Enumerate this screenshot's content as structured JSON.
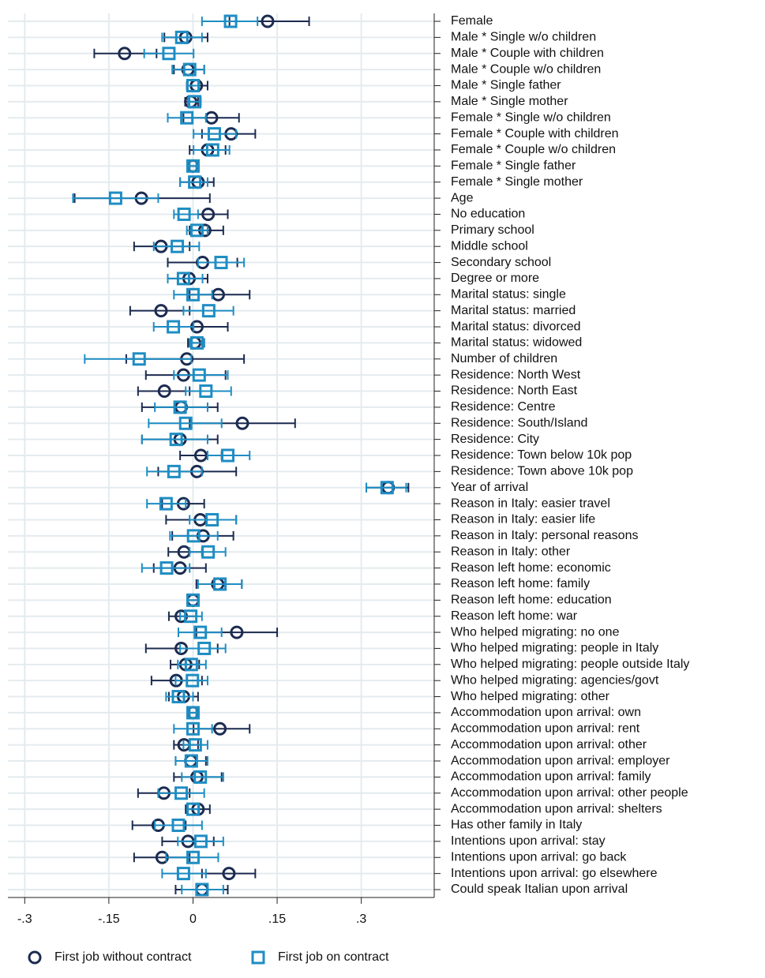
{
  "chart_data": {
    "type": "coefplot",
    "categories": [
      "Female",
      "Male * Single w/o children",
      "Male * Couple with children",
      "Male * Couple w/o children",
      "Male * Single father",
      "Male * Single mother",
      "Female * Single w/o children",
      "Female * Couple with children",
      "Female * Couple w/o children",
      "Female * Single father",
      "Female * Single mother",
      "Age",
      "No education",
      "Primary school",
      "Middle school",
      "Secondary school",
      "Degree or more",
      "Marital status: single",
      "Marital status: married",
      "Marital status: divorced",
      "Marital status: widowed",
      "Number of children",
      "Residence: North West",
      "Residence: North East",
      "Residence: Centre",
      "Residence: South/Island",
      "Residence: City",
      "Residence: Town below 10k pop",
      "Residence: Town above 10k pop",
      "Year of arrival",
      "Reason in Italy: easier travel",
      "Reason in Italy: easier life",
      "Reason in Italy: personal reasons",
      "Reason in Italy: other",
      "Reason left home: economic",
      "Reason left home: family",
      "Reason left home: education",
      "Reason left home: war",
      "Who helped migrating: no one",
      "Who helped migrating: people in Italy",
      "Who helped migrating: people outside Italy",
      "Who helped migrating: agencies/govt",
      "Who helped migrating: other",
      "Accommodation upon arrival: own",
      "Accommodation upon arrival: rent",
      "Accommodation upon arrival: other",
      "Accommodation upon arrival: employer",
      "Accommodation upon arrival: family",
      "Accommodation upon arrival: other people",
      "Accommodation upon arrival: shelters",
      "Has other family in Italy",
      "Intentions upon arrival: stay",
      "Intentions upon arrival: go back",
      "Intentions upon arrival: go elsewhere",
      "Could speak Italian upon arrival"
    ],
    "series": [
      {
        "name": "First job without contract",
        "marker": "circle",
        "color": "#1c2b50",
        "values": [
          0.133,
          -0.013,
          -0.122,
          -0.009,
          0.006,
          -0.004,
          0.033,
          0.068,
          0.026,
          0,
          0.009,
          -0.092,
          0.027,
          0.021,
          -0.057,
          0.017,
          -0.007,
          0.045,
          -0.057,
          0.007,
          0.003,
          -0.011,
          -0.017,
          -0.051,
          -0.021,
          0.088,
          -0.023,
          0.014,
          0.007,
          0.348,
          -0.017,
          0.013,
          0.018,
          -0.016,
          -0.023,
          0.044,
          0,
          -0.021,
          0.078,
          -0.021,
          -0.013,
          -0.03,
          -0.017,
          0,
          0.048,
          -0.016,
          -0.004,
          0.007,
          -0.052,
          0.009,
          -0.062,
          -0.009,
          -0.055,
          0.064,
          0.016
        ],
        "ci_low": [
          0.065,
          -0.051,
          -0.176,
          -0.034,
          -0.011,
          -0.014,
          -0.017,
          0.016,
          -0.006,
          -0.006,
          -0.023,
          -0.211,
          -0.006,
          -0.006,
          -0.105,
          -0.045,
          -0.045,
          -0.006,
          -0.112,
          -0.045,
          -0.009,
          -0.119,
          -0.084,
          -0.098,
          -0.091,
          -0.006,
          -0.091,
          -0.023,
          -0.062,
          0.309,
          -0.055,
          -0.048,
          -0.037,
          -0.044,
          -0.07,
          0.006,
          -0.009,
          -0.043,
          0.006,
          -0.084,
          -0.04,
          -0.074,
          -0.043,
          -0.006,
          0.001,
          -0.034,
          -0.031,
          -0.034,
          -0.098,
          -0.013,
          -0.108,
          -0.055,
          -0.105,
          0.016,
          -0.031
        ],
        "ci_high": [
          0.207,
          0.026,
          -0.065,
          0.02,
          0.026,
          0.009,
          0.082,
          0.111,
          0.058,
          0.006,
          0.037,
          0.03,
          0.062,
          0.054,
          -0.006,
          0.079,
          0.026,
          0.101,
          -0.006,
          0.062,
          0.02,
          0.091,
          0.058,
          -0.006,
          0.044,
          0.182,
          0.044,
          0.051,
          0.077,
          0.384,
          0.02,
          0.077,
          0.072,
          0.016,
          0.023,
          0.087,
          0.009,
          0.006,
          0.15,
          0.044,
          0.011,
          0.016,
          0.009,
          0.006,
          0.101,
          0.009,
          0.023,
          0.051,
          -0.006,
          0.03,
          -0.013,
          0.037,
          -0.006,
          0.111,
          0.062
        ]
      },
      {
        "name": "First job on contract",
        "marker": "square",
        "color": "#1e8dc3",
        "values": [
          0.067,
          -0.02,
          -0.043,
          -0.006,
          0,
          0.003,
          -0.011,
          0.038,
          0.035,
          0,
          0.003,
          -0.138,
          -0.016,
          0.007,
          -0.028,
          0.05,
          -0.017,
          0,
          0.028,
          -0.035,
          0.007,
          -0.096,
          0.011,
          0.023,
          -0.023,
          -0.013,
          -0.03,
          0.062,
          -0.034,
          0.346,
          -0.048,
          0.034,
          0.001,
          0.027,
          -0.047,
          0.048,
          0,
          -0.004,
          0.013,
          0.02,
          -0.003,
          -0.001,
          -0.026,
          0,
          0,
          0.004,
          -0.003,
          0.013,
          -0.021,
          0,
          -0.026,
          0.014,
          0,
          -0.017,
          0.016
        ],
        "ci_low": [
          0.016,
          -0.055,
          -0.087,
          -0.037,
          -0.011,
          -0.009,
          -0.045,
          0.001,
          0.001,
          -0.006,
          -0.023,
          -0.214,
          -0.034,
          -0.011,
          -0.07,
          0.009,
          -0.045,
          -0.034,
          -0.017,
          -0.07,
          -0.006,
          -0.193,
          -0.034,
          -0.013,
          -0.068,
          -0.079,
          -0.091,
          0.026,
          -0.082,
          0.309,
          -0.082,
          -0.006,
          -0.041,
          -0.006,
          -0.091,
          0.009,
          -0.009,
          -0.023,
          -0.026,
          -0.023,
          -0.027,
          -0.031,
          -0.048,
          -0.006,
          -0.034,
          -0.017,
          -0.031,
          -0.02,
          -0.062,
          -0.009,
          -0.068,
          -0.027,
          -0.048,
          -0.055,
          -0.02
        ],
        "ci_high": [
          0.115,
          0.016,
          0.001,
          0.02,
          0.011,
          0.014,
          0.023,
          0.077,
          0.065,
          0.006,
          0.026,
          -0.062,
          0.009,
          0.026,
          0.011,
          0.091,
          0.017,
          0.034,
          0.072,
          0.001,
          0.02,
          -0.003,
          0.062,
          0.068,
          0.026,
          0.051,
          0.026,
          0.101,
          0.016,
          0.38,
          -0.013,
          0.077,
          0.044,
          0.058,
          -0.006,
          0.087,
          0.009,
          0.016,
          0.051,
          0.058,
          0.023,
          0.026,
          0,
          0.006,
          0.034,
          0.026,
          0.026,
          0.054,
          0.02,
          0.011,
          0.016,
          0.054,
          0.045,
          0.023,
          0.054
        ]
      }
    ],
    "xlim": [
      -0.33,
      0.43
    ],
    "xticks": [
      {
        "value": -0.3,
        "label": "-.3"
      },
      {
        "value": -0.15,
        "label": "-.15"
      },
      0,
      {
        "value": 0.15,
        "label": ".15"
      },
      {
        "value": 0.3,
        "label": ".3"
      }
    ],
    "grid": true,
    "legend": "bottom"
  }
}
